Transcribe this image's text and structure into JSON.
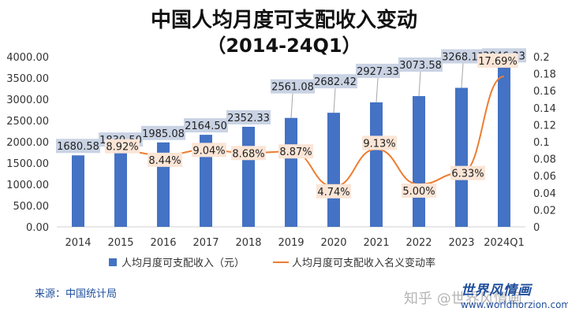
{
  "chart_data": {
    "type": "bar",
    "title": "中国人均月度可支配收入变动",
    "subtitle": "（2014-24Q1）",
    "categories": [
      "2014",
      "2015",
      "2016",
      "2017",
      "2018",
      "2019",
      "2020",
      "2021",
      "2022",
      "2023",
      "2024Q1"
    ],
    "series": [
      {
        "name": "人均月度可支配收入（元）",
        "type": "bar",
        "axis": "left",
        "values": [
          1680.58,
          1830.5,
          1985.08,
          2164.5,
          2352.33,
          2561.08,
          2682.42,
          2927.33,
          3073.58,
          3268.17,
          3846.33
        ],
        "labels": [
          "1680.58",
          "1830.50",
          "1985.08",
          "2164.50",
          "2352.33",
          "2561.08",
          "2682.42",
          "2927.33",
          "3073.58",
          "3268.17",
          "3846.33"
        ],
        "color": "#4472c4"
      },
      {
        "name": "人均月度可支配收入名义变动率",
        "type": "line",
        "axis": "right",
        "values": [
          null,
          0.0892,
          0.0844,
          0.0904,
          0.0868,
          0.0887,
          0.0474,
          0.0913,
          0.05,
          0.0633,
          0.1769
        ],
        "labels": [
          "",
          "8.92%",
          "8.44%",
          "9.04%",
          "8.68%",
          "8.87%",
          "4.74%",
          "9.13%",
          "5.00%",
          "6.33%",
          "17.69%"
        ],
        "color": "#ed7d31"
      }
    ],
    "left_axis": {
      "min": 0,
      "max": 4000,
      "step": 500,
      "ticks": [
        "0.00",
        "500.00",
        "1000.00",
        "1500.00",
        "2000.00",
        "2500.00",
        "3000.00",
        "3500.00",
        "4000.00"
      ]
    },
    "right_axis": {
      "min": 0,
      "max": 0.2,
      "step": 0.02,
      "ticks": [
        "0",
        "0.02",
        "0.04",
        "0.06",
        "0.08",
        "0.1",
        "0.12",
        "0.14",
        "0.16",
        "0.18",
        "0.2"
      ]
    },
    "grid": false,
    "legend": "bottom"
  },
  "footer": {
    "source": "来源：中国统计局",
    "brand": "世界风情画",
    "url": "www.worldhorzion.com",
    "watermark": "知乎 @世界风情画"
  },
  "colors": {
    "title": "#111111",
    "bar_label_bg": "#c9d3e4",
    "line_label_bg": "#fbe5d6",
    "brand": "#1f4e9c"
  }
}
